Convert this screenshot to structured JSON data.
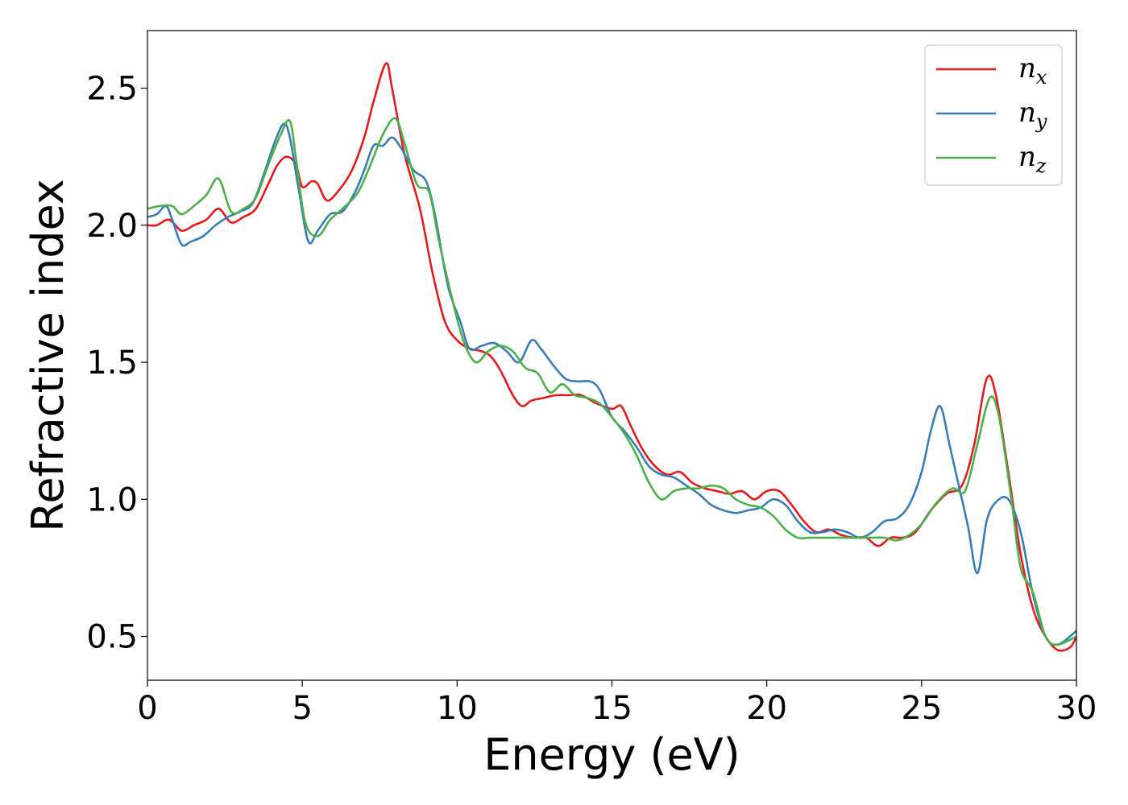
{
  "chart_data": {
    "type": "line",
    "title": "",
    "xlabel": "Energy (eV)",
    "ylabel": "Refractive index",
    "xlim": [
      0,
      30
    ],
    "ylim": [
      0.34,
      2.71
    ],
    "xticks": [
      0,
      5,
      10,
      15,
      20,
      25,
      30
    ],
    "xtick_labels": [
      "0",
      "5",
      "10",
      "15",
      "20",
      "25",
      "30"
    ],
    "yticks": [
      0.5,
      1.0,
      1.5,
      2.0,
      2.5
    ],
    "ytick_labels": [
      "0.5",
      "1.0",
      "1.5",
      "2.0",
      "2.5"
    ],
    "grid": false,
    "legend_position": "top-right",
    "series": [
      {
        "name": "n_x",
        "label_base": "n",
        "label_sub": "x",
        "color": "#e41a1c",
        "points": [
          [
            0,
            2.0
          ],
          [
            0.3,
            2.0
          ],
          [
            0.7,
            2.02
          ],
          [
            1.1,
            1.98
          ],
          [
            1.5,
            2.0
          ],
          [
            1.9,
            2.02
          ],
          [
            2.3,
            2.06
          ],
          [
            2.7,
            2.01
          ],
          [
            3.1,
            2.03
          ],
          [
            3.5,
            2.06
          ],
          [
            3.9,
            2.15
          ],
          [
            4.2,
            2.22
          ],
          [
            4.5,
            2.25
          ],
          [
            4.8,
            2.22
          ],
          [
            5.0,
            2.14
          ],
          [
            5.3,
            2.16
          ],
          [
            5.5,
            2.15
          ],
          [
            5.8,
            2.09
          ],
          [
            6.2,
            2.13
          ],
          [
            6.6,
            2.2
          ],
          [
            7.0,
            2.32
          ],
          [
            7.3,
            2.45
          ],
          [
            7.7,
            2.59
          ],
          [
            7.9,
            2.5
          ],
          [
            8.3,
            2.26
          ],
          [
            8.8,
            2.06
          ],
          [
            9.2,
            1.83
          ],
          [
            9.6,
            1.65
          ],
          [
            10.0,
            1.58
          ],
          [
            10.4,
            1.55
          ],
          [
            10.8,
            1.54
          ],
          [
            11.1,
            1.52
          ],
          [
            11.4,
            1.47
          ],
          [
            11.8,
            1.38
          ],
          [
            12.1,
            1.34
          ],
          [
            12.4,
            1.36
          ],
          [
            12.8,
            1.37
          ],
          [
            13.2,
            1.38
          ],
          [
            13.6,
            1.38
          ],
          [
            14.0,
            1.38
          ],
          [
            14.5,
            1.35
          ],
          [
            15.0,
            1.33
          ],
          [
            15.3,
            1.34
          ],
          [
            15.6,
            1.27
          ],
          [
            16.0,
            1.18
          ],
          [
            16.4,
            1.12
          ],
          [
            16.8,
            1.09
          ],
          [
            17.2,
            1.1
          ],
          [
            17.6,
            1.06
          ],
          [
            18.0,
            1.04
          ],
          [
            18.4,
            1.03
          ],
          [
            18.8,
            1.02
          ],
          [
            19.2,
            1.03
          ],
          [
            19.6,
            1.0
          ],
          [
            20.0,
            1.03
          ],
          [
            20.4,
            1.03
          ],
          [
            20.8,
            0.98
          ],
          [
            21.2,
            0.92
          ],
          [
            21.6,
            0.88
          ],
          [
            22.0,
            0.89
          ],
          [
            22.4,
            0.87
          ],
          [
            22.8,
            0.86
          ],
          [
            23.2,
            0.86
          ],
          [
            23.6,
            0.83
          ],
          [
            24.0,
            0.86
          ],
          [
            24.4,
            0.86
          ],
          [
            24.8,
            0.88
          ],
          [
            25.3,
            0.96
          ],
          [
            25.8,
            1.02
          ],
          [
            26.3,
            1.05
          ],
          [
            26.7,
            1.2
          ],
          [
            27.1,
            1.44
          ],
          [
            27.4,
            1.38
          ],
          [
            27.8,
            1.1
          ],
          [
            28.2,
            0.8
          ],
          [
            28.6,
            0.6
          ],
          [
            29.0,
            0.5
          ],
          [
            29.4,
            0.45
          ],
          [
            29.8,
            0.46
          ],
          [
            30.0,
            0.5
          ]
        ]
      },
      {
        "name": "n_y",
        "label_base": "n",
        "label_sub": "y",
        "color": "#377eb8",
        "points": [
          [
            0,
            2.03
          ],
          [
            0.3,
            2.04
          ],
          [
            0.6,
            2.07
          ],
          [
            0.8,
            2.02
          ],
          [
            1.1,
            1.93
          ],
          [
            1.4,
            1.94
          ],
          [
            1.8,
            1.96
          ],
          [
            2.2,
            2.0
          ],
          [
            2.6,
            2.03
          ],
          [
            3.0,
            2.05
          ],
          [
            3.4,
            2.08
          ],
          [
            3.8,
            2.2
          ],
          [
            4.1,
            2.3
          ],
          [
            4.4,
            2.37
          ],
          [
            4.6,
            2.32
          ],
          [
            4.9,
            2.12
          ],
          [
            5.2,
            1.94
          ],
          [
            5.5,
            1.98
          ],
          [
            5.9,
            2.04
          ],
          [
            6.3,
            2.05
          ],
          [
            6.7,
            2.12
          ],
          [
            7.0,
            2.2
          ],
          [
            7.3,
            2.29
          ],
          [
            7.6,
            2.29
          ],
          [
            7.9,
            2.32
          ],
          [
            8.2,
            2.28
          ],
          [
            8.6,
            2.2
          ],
          [
            9.0,
            2.16
          ],
          [
            9.3,
            2.03
          ],
          [
            9.7,
            1.78
          ],
          [
            10.1,
            1.65
          ],
          [
            10.4,
            1.55
          ],
          [
            10.8,
            1.56
          ],
          [
            11.2,
            1.57
          ],
          [
            11.6,
            1.54
          ],
          [
            12.0,
            1.5
          ],
          [
            12.4,
            1.58
          ],
          [
            12.7,
            1.55
          ],
          [
            13.1,
            1.49
          ],
          [
            13.5,
            1.44
          ],
          [
            13.9,
            1.43
          ],
          [
            14.3,
            1.43
          ],
          [
            14.6,
            1.4
          ],
          [
            15.0,
            1.3
          ],
          [
            15.4,
            1.25
          ],
          [
            15.8,
            1.19
          ],
          [
            16.2,
            1.12
          ],
          [
            16.6,
            1.09
          ],
          [
            17.0,
            1.08
          ],
          [
            17.4,
            1.05
          ],
          [
            17.8,
            1.02
          ],
          [
            18.2,
            0.98
          ],
          [
            18.6,
            0.96
          ],
          [
            19.0,
            0.95
          ],
          [
            19.4,
            0.96
          ],
          [
            19.8,
            0.97
          ],
          [
            20.2,
            1.0
          ],
          [
            20.6,
            0.98
          ],
          [
            21.0,
            0.92
          ],
          [
            21.4,
            0.88
          ],
          [
            21.8,
            0.88
          ],
          [
            22.2,
            0.89
          ],
          [
            22.6,
            0.88
          ],
          [
            23.0,
            0.86
          ],
          [
            23.4,
            0.88
          ],
          [
            23.8,
            0.92
          ],
          [
            24.2,
            0.93
          ],
          [
            24.6,
            0.98
          ],
          [
            25.0,
            1.1
          ],
          [
            25.3,
            1.25
          ],
          [
            25.6,
            1.34
          ],
          [
            25.9,
            1.2
          ],
          [
            26.2,
            1.05
          ],
          [
            26.5,
            0.9
          ],
          [
            26.8,
            0.73
          ],
          [
            27.1,
            0.92
          ],
          [
            27.4,
            0.99
          ],
          [
            27.8,
            1.0
          ],
          [
            28.2,
            0.88
          ],
          [
            28.6,
            0.65
          ],
          [
            29.0,
            0.5
          ],
          [
            29.4,
            0.47
          ],
          [
            30.0,
            0.52
          ]
        ]
      },
      {
        "name": "n_z",
        "label_base": "n",
        "label_sub": "z",
        "color": "#4daf4a",
        "points": [
          [
            0,
            2.06
          ],
          [
            0.4,
            2.07
          ],
          [
            0.8,
            2.07
          ],
          [
            1.1,
            2.04
          ],
          [
            1.5,
            2.07
          ],
          [
            1.9,
            2.11
          ],
          [
            2.3,
            2.17
          ],
          [
            2.7,
            2.05
          ],
          [
            3.1,
            2.06
          ],
          [
            3.5,
            2.1
          ],
          [
            3.9,
            2.22
          ],
          [
            4.3,
            2.33
          ],
          [
            4.6,
            2.38
          ],
          [
            4.8,
            2.24
          ],
          [
            5.1,
            2.01
          ],
          [
            5.5,
            1.96
          ],
          [
            5.9,
            2.02
          ],
          [
            6.3,
            2.06
          ],
          [
            6.8,
            2.12
          ],
          [
            7.2,
            2.22
          ],
          [
            7.6,
            2.33
          ],
          [
            8.0,
            2.39
          ],
          [
            8.3,
            2.3
          ],
          [
            8.7,
            2.15
          ],
          [
            9.1,
            2.12
          ],
          [
            9.4,
            1.95
          ],
          [
            9.8,
            1.75
          ],
          [
            10.2,
            1.58
          ],
          [
            10.6,
            1.5
          ],
          [
            11.0,
            1.54
          ],
          [
            11.4,
            1.56
          ],
          [
            11.8,
            1.54
          ],
          [
            12.2,
            1.48
          ],
          [
            12.6,
            1.46
          ],
          [
            13.0,
            1.39
          ],
          [
            13.4,
            1.42
          ],
          [
            13.8,
            1.38
          ],
          [
            14.2,
            1.37
          ],
          [
            14.6,
            1.35
          ],
          [
            15.0,
            1.3
          ],
          [
            15.4,
            1.24
          ],
          [
            15.8,
            1.16
          ],
          [
            16.2,
            1.06
          ],
          [
            16.6,
            1.0
          ],
          [
            17.0,
            1.03
          ],
          [
            17.4,
            1.04
          ],
          [
            17.8,
            1.04
          ],
          [
            18.2,
            1.05
          ],
          [
            18.6,
            1.04
          ],
          [
            19.0,
            1.0
          ],
          [
            19.4,
            0.98
          ],
          [
            19.8,
            0.97
          ],
          [
            20.2,
            0.94
          ],
          [
            20.6,
            0.89
          ],
          [
            21.0,
            0.86
          ],
          [
            21.4,
            0.86
          ],
          [
            21.8,
            0.86
          ],
          [
            22.2,
            0.86
          ],
          [
            22.6,
            0.86
          ],
          [
            23.0,
            0.86
          ],
          [
            23.4,
            0.86
          ],
          [
            23.8,
            0.86
          ],
          [
            24.2,
            0.85
          ],
          [
            24.6,
            0.87
          ],
          [
            25.0,
            0.91
          ],
          [
            25.5,
            0.99
          ],
          [
            26.0,
            1.04
          ],
          [
            26.4,
            1.03
          ],
          [
            26.8,
            1.2
          ],
          [
            27.2,
            1.37
          ],
          [
            27.5,
            1.3
          ],
          [
            27.9,
            1.0
          ],
          [
            28.2,
            0.75
          ],
          [
            28.6,
            0.66
          ],
          [
            29.0,
            0.5
          ],
          [
            29.4,
            0.47
          ],
          [
            30.0,
            0.5
          ]
        ]
      }
    ]
  }
}
